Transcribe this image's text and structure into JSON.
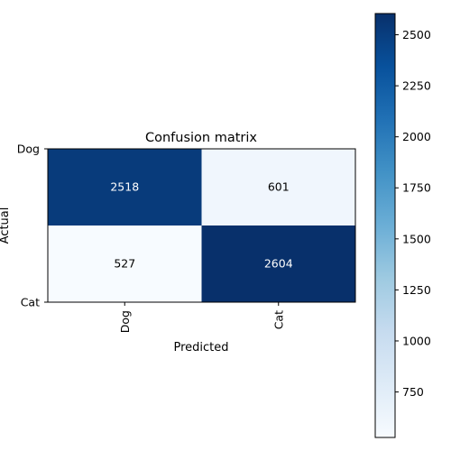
{
  "chart_data": {
    "type": "heatmap",
    "title": "Confusion matrix",
    "xlabel": "Predicted",
    "ylabel": "Actual",
    "x_categories": [
      "Dog",
      "Cat"
    ],
    "y_categories": [
      "Dog",
      "Cat"
    ],
    "values": [
      [
        2518,
        601
      ],
      [
        527,
        2604
      ]
    ],
    "colormap": "Blues",
    "color_range": [
      527,
      2604
    ],
    "colorbar_ticks": [
      750,
      1000,
      1250,
      1500,
      1750,
      2000,
      2250,
      2500
    ],
    "colorbar_tick_labels": [
      "750",
      "1000",
      "1250",
      "1500",
      "1750",
      "2000",
      "2250",
      "2500"
    ],
    "cell_text_colors": {
      "light": "#ffffff",
      "dark": "#000000"
    },
    "grid": false
  }
}
